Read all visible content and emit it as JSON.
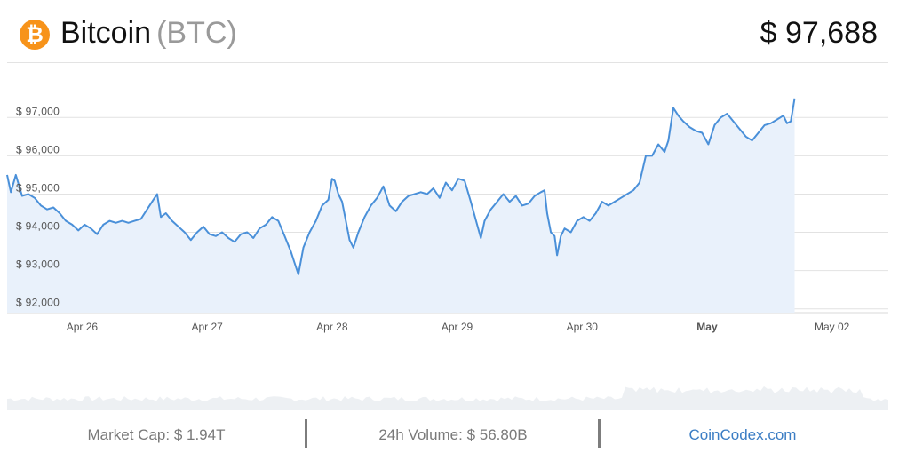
{
  "header": {
    "logo_glyph": "₿",
    "coin_name": "Bitcoin",
    "coin_symbol": "(BTC)",
    "price": "$ 97,688"
  },
  "footer": {
    "market_cap": "Market Cap: $ 1.94T",
    "volume": "24h Volume: $ 56.80B",
    "source_link": "CoinCodex.com"
  },
  "colors": {
    "line": "#4a90d9",
    "area_fill": "#e9f1fb",
    "volume_fill": "#edf0f3",
    "logo": "#f7931a",
    "link": "#3b7dc4"
  },
  "chart_data": {
    "type": "area",
    "title": "",
    "xlabel": "",
    "ylabel": "",
    "ylim": [
      91900,
      98400
    ],
    "y_ticks": [
      {
        "value": 92000,
        "label": "$ 92,000"
      },
      {
        "value": 93000,
        "label": "$ 93,000"
      },
      {
        "value": 94000,
        "label": "$ 94,000"
      },
      {
        "value": 95000,
        "label": "$ 95,000"
      },
      {
        "value": 96000,
        "label": "$ 96,000"
      },
      {
        "value": 97000,
        "label": "$ 97,000"
      }
    ],
    "x_range_days": [
      25.4,
      32.45
    ],
    "x_ticks": [
      {
        "day": 26,
        "label": "Apr 26",
        "bold": false
      },
      {
        "day": 27,
        "label": "Apr 27",
        "bold": false
      },
      {
        "day": 28,
        "label": "Apr 28",
        "bold": false
      },
      {
        "day": 29,
        "label": "Apr 29",
        "bold": false
      },
      {
        "day": 30,
        "label": "Apr 30",
        "bold": false
      },
      {
        "day": 31,
        "label": "May",
        "bold": true
      },
      {
        "day": 32,
        "label": "May 02",
        "bold": false
      }
    ],
    "grid": true,
    "series": [
      {
        "name": "",
        "points": [
          [
            25.4,
            95500
          ],
          [
            25.43,
            95050
          ],
          [
            25.47,
            95500
          ],
          [
            25.52,
            94950
          ],
          [
            25.57,
            95000
          ],
          [
            25.62,
            94900
          ],
          [
            25.67,
            94700
          ],
          [
            25.72,
            94600
          ],
          [
            25.77,
            94650
          ],
          [
            25.82,
            94500
          ],
          [
            25.87,
            94300
          ],
          [
            25.92,
            94200
          ],
          [
            25.97,
            94050
          ],
          [
            26.02,
            94200
          ],
          [
            26.07,
            94100
          ],
          [
            26.12,
            93950
          ],
          [
            26.17,
            94200
          ],
          [
            26.22,
            94300
          ],
          [
            26.27,
            94250
          ],
          [
            26.32,
            94300
          ],
          [
            26.37,
            94250
          ],
          [
            26.42,
            94300
          ],
          [
            26.47,
            94350
          ],
          [
            26.52,
            94600
          ],
          [
            26.57,
            94850
          ],
          [
            26.6,
            95000
          ],
          [
            26.63,
            94400
          ],
          [
            26.67,
            94500
          ],
          [
            26.72,
            94300
          ],
          [
            26.77,
            94150
          ],
          [
            26.82,
            94000
          ],
          [
            26.87,
            93800
          ],
          [
            26.92,
            94000
          ],
          [
            26.97,
            94150
          ],
          [
            27.02,
            93950
          ],
          [
            27.07,
            93900
          ],
          [
            27.12,
            94000
          ],
          [
            27.17,
            93850
          ],
          [
            27.22,
            93750
          ],
          [
            27.27,
            93950
          ],
          [
            27.32,
            94000
          ],
          [
            27.37,
            93850
          ],
          [
            27.42,
            94100
          ],
          [
            27.47,
            94200
          ],
          [
            27.52,
            94400
          ],
          [
            27.57,
            94300
          ],
          [
            27.62,
            93900
          ],
          [
            27.67,
            93500
          ],
          [
            27.7,
            93200
          ],
          [
            27.73,
            92900
          ],
          [
            27.77,
            93600
          ],
          [
            27.82,
            94000
          ],
          [
            27.87,
            94300
          ],
          [
            27.92,
            94700
          ],
          [
            27.97,
            94850
          ],
          [
            28.0,
            95400
          ],
          [
            28.02,
            95350
          ],
          [
            28.05,
            95000
          ],
          [
            28.08,
            94800
          ],
          [
            28.11,
            94300
          ],
          [
            28.14,
            93800
          ],
          [
            28.17,
            93600
          ],
          [
            28.21,
            94000
          ],
          [
            28.26,
            94400
          ],
          [
            28.31,
            94700
          ],
          [
            28.36,
            94900
          ],
          [
            28.41,
            95200
          ],
          [
            28.46,
            94700
          ],
          [
            28.51,
            94550
          ],
          [
            28.56,
            94800
          ],
          [
            28.61,
            94950
          ],
          [
            28.66,
            95000
          ],
          [
            28.71,
            95050
          ],
          [
            28.76,
            95000
          ],
          [
            28.81,
            95150
          ],
          [
            28.86,
            94900
          ],
          [
            28.91,
            95300
          ],
          [
            28.96,
            95100
          ],
          [
            29.01,
            95400
          ],
          [
            29.06,
            95350
          ],
          [
            29.11,
            94800
          ],
          [
            29.16,
            94200
          ],
          [
            29.19,
            93850
          ],
          [
            29.22,
            94300
          ],
          [
            29.27,
            94600
          ],
          [
            29.32,
            94800
          ],
          [
            29.37,
            95000
          ],
          [
            29.42,
            94800
          ],
          [
            29.47,
            94950
          ],
          [
            29.52,
            94700
          ],
          [
            29.57,
            94750
          ],
          [
            29.62,
            94950
          ],
          [
            29.67,
            95050
          ],
          [
            29.7,
            95100
          ],
          [
            29.72,
            94500
          ],
          [
            29.75,
            94000
          ],
          [
            29.78,
            93900
          ],
          [
            29.8,
            93400
          ],
          [
            29.83,
            93900
          ],
          [
            29.86,
            94100
          ],
          [
            29.91,
            94000
          ],
          [
            29.96,
            94300
          ],
          [
            30.01,
            94400
          ],
          [
            30.06,
            94300
          ],
          [
            30.11,
            94500
          ],
          [
            30.16,
            94800
          ],
          [
            30.21,
            94700
          ],
          [
            30.26,
            94800
          ],
          [
            30.31,
            94900
          ],
          [
            30.36,
            95000
          ],
          [
            30.41,
            95100
          ],
          [
            30.46,
            95300
          ],
          [
            30.51,
            96000
          ],
          [
            30.56,
            96000
          ],
          [
            30.61,
            96300
          ],
          [
            30.66,
            96100
          ],
          [
            30.69,
            96400
          ],
          [
            30.73,
            97250
          ],
          [
            30.77,
            97050
          ],
          [
            30.81,
            96900
          ],
          [
            30.86,
            96750
          ],
          [
            30.91,
            96650
          ],
          [
            30.96,
            96600
          ],
          [
            31.01,
            96300
          ],
          [
            31.06,
            96800
          ],
          [
            31.11,
            97000
          ],
          [
            31.16,
            97100
          ],
          [
            31.21,
            96900
          ],
          [
            31.26,
            96700
          ],
          [
            31.31,
            96500
          ],
          [
            31.36,
            96400
          ],
          [
            31.41,
            96600
          ],
          [
            31.46,
            96800
          ],
          [
            31.51,
            96850
          ],
          [
            31.56,
            96950
          ],
          [
            31.61,
            97050
          ],
          [
            31.64,
            96850
          ],
          [
            31.67,
            96900
          ],
          [
            31.7,
            97500
          ]
        ]
      }
    ],
    "volume_bars": "decorative"
  }
}
